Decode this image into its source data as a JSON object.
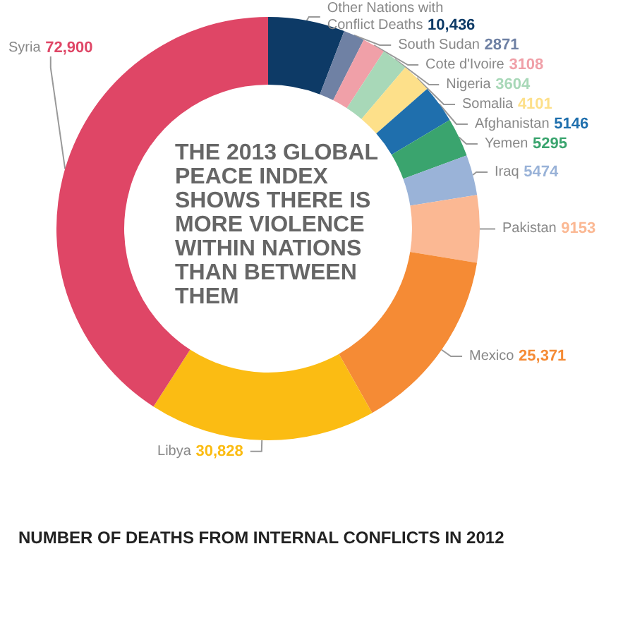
{
  "chart_data": {
    "type": "donut",
    "title": "NUMBER OF DEATHS FROM INTERNAL CONFLICTS IN 2012",
    "annotations": [
      "THE 2013 GLOBAL PEACE INDEX SHOWS THERE IS MORE VIOLENCE WITHIN NATIONS THAN BETWEEN THEM"
    ],
    "categories": [
      "Other Nations with Conflict Deaths",
      "South Sudan",
      "Cote d'Ivoire",
      "Nigeria",
      "Somalia",
      "Afghanistan",
      "Yemen",
      "Iraq",
      "Pakistan",
      "Mexico",
      "Libya",
      "Syria"
    ],
    "values": [
      10436,
      2871,
      3108,
      3604,
      4101,
      5146,
      5295,
      5474,
      9153,
      25371,
      30828,
      72900
    ],
    "value_labels": [
      "10,436",
      "2871",
      "3108",
      "3604",
      "4101",
      "5146",
      "5295",
      "5474",
      "9153",
      "25,371",
      "30,828",
      "72,900"
    ],
    "colors": [
      "#0d3a66",
      "#6f81a4",
      "#f0a0a8",
      "#a8d8b8",
      "#fde08a",
      "#1f6fad",
      "#3aa46e",
      "#9ab3d8",
      "#fbb893",
      "#f58b35",
      "#fbbc13",
      "#df4666"
    ],
    "legend": false
  }
}
